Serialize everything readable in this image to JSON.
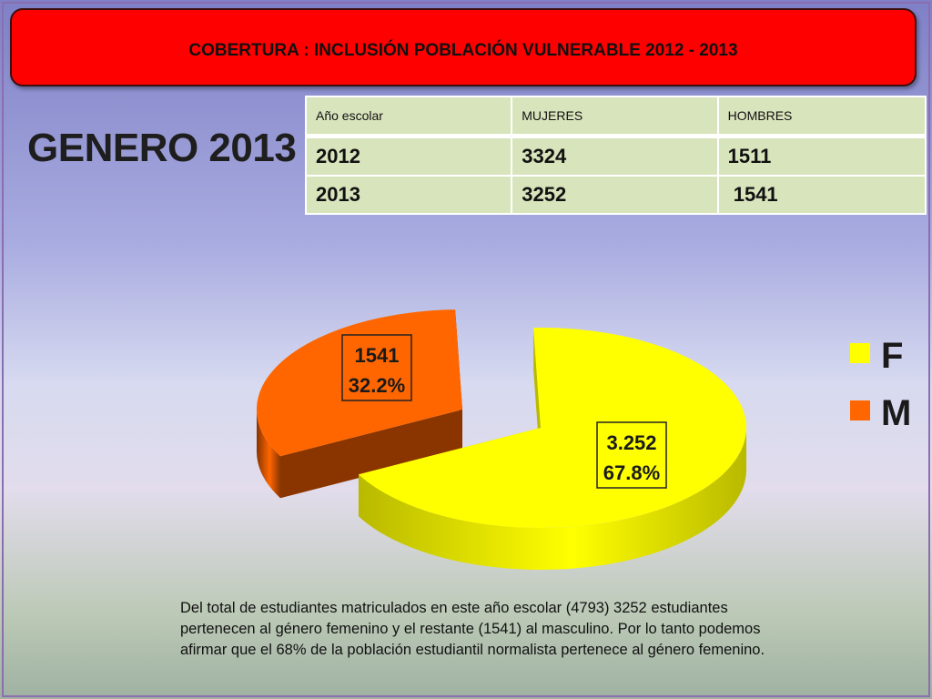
{
  "banner": {
    "title": "COBERTURA :  INCLUSIÓN POBLACIÓN VULNERABLE  2012 - 2013"
  },
  "heading": "GENERO 2013",
  "table": {
    "headers": [
      "Año escolar",
      "MUJERES",
      "HOMBRES"
    ],
    "rows": [
      [
        "2012",
        "3324",
        "1511"
      ],
      [
        "2013",
        "3252",
        " 1541"
      ]
    ]
  },
  "chart_data": {
    "type": "pie",
    "style": "3d-exploded",
    "legend_position": "right",
    "slices": [
      {
        "name": "F",
        "value": 3252,
        "value_label": "3.252",
        "percent": 67.8,
        "percent_label": "67.8%",
        "color": "#ffff00",
        "side_color": "#b9b900"
      },
      {
        "name": "M",
        "value": 1541,
        "value_label": "1541",
        "percent": 32.2,
        "percent_label": "32.2%",
        "color": "#ff6600",
        "side_color": "#8a3400"
      }
    ]
  },
  "note": "Del total de estudiantes matriculados en este año escolar (4793) 3252 estudiantes pertenecen al género femenino y el restante (1541) al masculino. Por lo tanto podemos afirmar que el 68% de la población estudiantil normalista pertenece al género femenino.",
  "colors": {
    "banner": "#ff0000",
    "table_fill": "#d8e4bc"
  }
}
